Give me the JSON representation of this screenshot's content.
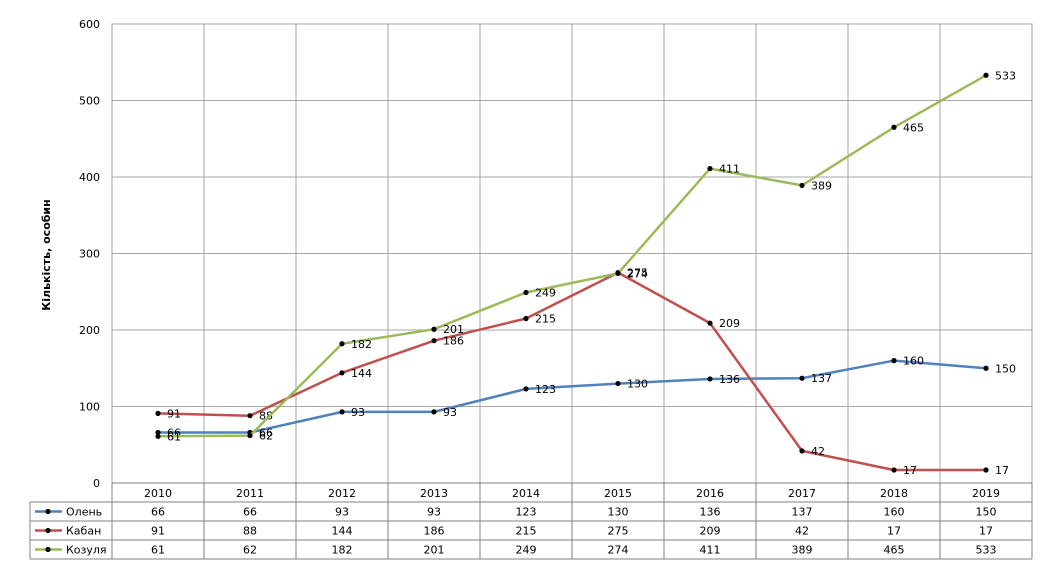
{
  "chart_data": {
    "type": "line",
    "title": "",
    "xlabel": "",
    "ylabel": "Кількість, особин",
    "ylim": [
      0,
      600
    ],
    "yticks": [
      0,
      100,
      200,
      300,
      400,
      500,
      600
    ],
    "grid": true,
    "legend": "data-table-below",
    "categories": [
      "2010",
      "2011",
      "2012",
      "2013",
      "2014",
      "2015",
      "2016",
      "2017",
      "2018",
      "2019"
    ],
    "series": [
      {
        "name": "Олень",
        "color": "#4f81bd",
        "values": [
          66,
          66,
          93,
          93,
          123,
          130,
          136,
          137,
          160,
          150
        ]
      },
      {
        "name": "Кабан",
        "color": "#c0504d",
        "values": [
          91,
          88,
          144,
          186,
          215,
          275,
          209,
          42,
          17,
          17
        ]
      },
      {
        "name": "Козуля",
        "color": "#9bbb59",
        "values": [
          61,
          62,
          182,
          201,
          249,
          274,
          411,
          389,
          465,
          533
        ]
      }
    ]
  }
}
